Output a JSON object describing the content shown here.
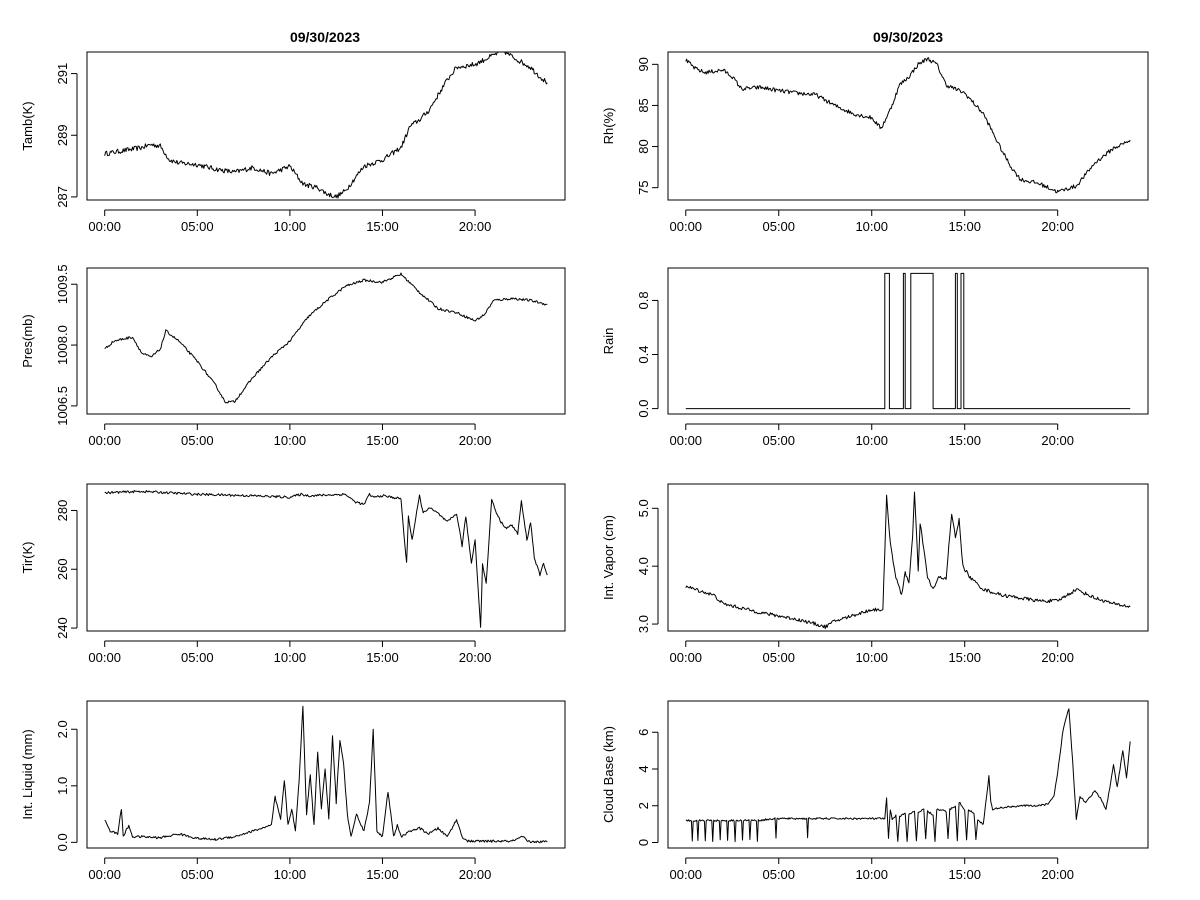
{
  "titles": {
    "left": "09/30/2023",
    "right": "09/30/2023"
  },
  "chart_data": [
    {
      "type": "line",
      "ylabel": "Tamb(K)",
      "xlim": [
        0,
        24
      ],
      "ylim": [
        286.9,
        291.7
      ],
      "xticks": [
        0,
        5,
        10,
        15,
        20
      ],
      "xtick_labels": [
        "00:00",
        "05:00",
        "10:00",
        "15:00",
        "20:00"
      ],
      "yticks": [
        287,
        289,
        291
      ],
      "ytick_labels": [
        "287",
        "289",
        "291"
      ],
      "series": [
        {
          "noise": 0.08,
          "x": [
            0,
            0.5,
            1,
            1.5,
            2,
            2.5,
            3,
            3.5,
            4,
            5,
            6,
            7,
            8,
            9,
            10,
            10.6,
            10.8,
            11.5,
            12,
            12.5,
            13,
            13.5,
            14,
            15,
            16,
            16.5,
            17,
            17.5,
            18,
            18.5,
            19,
            20,
            21,
            21.5,
            22,
            23,
            23.5,
            23.9
          ],
          "y": [
            288.4,
            288.45,
            288.5,
            288.55,
            288.6,
            288.7,
            288.65,
            288.2,
            288.1,
            288.05,
            287.9,
            287.8,
            287.95,
            287.75,
            288.0,
            287.5,
            287.4,
            287.3,
            287.1,
            287.0,
            287.2,
            287.6,
            288.0,
            288.2,
            288.6,
            289.3,
            289.5,
            289.8,
            290.3,
            290.8,
            291.2,
            291.3,
            291.6,
            291.75,
            291.55,
            291.2,
            290.9,
            290.7
          ]
        }
      ]
    },
    {
      "type": "line",
      "ylabel": "Rh(%)",
      "xlim": [
        0,
        24
      ],
      "ylim": [
        73.5,
        91.5
      ],
      "xticks": [
        0,
        5,
        10,
        15,
        20
      ],
      "xtick_labels": [
        "00:00",
        "05:00",
        "10:00",
        "15:00",
        "20:00"
      ],
      "yticks": [
        75,
        80,
        85,
        90
      ],
      "ytick_labels": [
        "75",
        "80",
        "85",
        "90"
      ],
      "series": [
        {
          "noise": 0.25,
          "x": [
            0,
            0.5,
            1,
            2,
            2.5,
            3,
            4,
            5,
            6,
            7,
            8,
            9,
            10,
            10.5,
            11,
            11.5,
            12,
            12.5,
            13,
            13.5,
            14,
            15,
            16,
            17,
            17.5,
            18,
            19,
            20,
            21,
            22,
            23,
            23.5,
            23.9
          ],
          "y": [
            90.5,
            89.5,
            89.0,
            89.3,
            88.5,
            87.0,
            87.2,
            86.8,
            86.5,
            86.3,
            85.0,
            84.0,
            83.5,
            82.2,
            84.5,
            87.5,
            88.5,
            90.0,
            90.7,
            90.0,
            87.5,
            86.5,
            84.0,
            79.5,
            77.5,
            76.0,
            75.5,
            74.5,
            75.2,
            78.0,
            79.8,
            80.3,
            80.8
          ]
        }
      ]
    },
    {
      "type": "line",
      "ylabel": "Pres(mb)",
      "xlim": [
        0,
        24
      ],
      "ylim": [
        1006.3,
        1009.9
      ],
      "xticks": [
        0,
        5,
        10,
        15,
        20
      ],
      "xtick_labels": [
        "00:00",
        "05:00",
        "10:00",
        "15:00",
        "20:00"
      ],
      "yticks": [
        1006.5,
        1008.0,
        1009.5
      ],
      "ytick_labels": [
        "1006.5",
        "1008.0",
        "1009.5"
      ],
      "series": [
        {
          "noise": 0.03,
          "x": [
            0,
            0.5,
            1,
            1.5,
            2,
            2.5,
            3,
            3.3,
            4,
            5,
            6,
            6.5,
            7,
            8,
            9,
            10,
            11,
            12,
            13,
            14,
            15,
            16,
            17,
            18,
            19,
            20,
            20.5,
            21,
            22,
            23,
            23.9
          ],
          "y": [
            1007.9,
            1008.1,
            1008.15,
            1008.2,
            1007.8,
            1007.7,
            1007.9,
            1008.35,
            1008.1,
            1007.6,
            1007.0,
            1006.6,
            1006.6,
            1007.2,
            1007.7,
            1008.1,
            1008.7,
            1009.1,
            1009.45,
            1009.6,
            1009.55,
            1009.75,
            1009.3,
            1008.9,
            1008.8,
            1008.6,
            1008.75,
            1009.1,
            1009.15,
            1009.1,
            1009.0
          ]
        }
      ]
    },
    {
      "type": "line",
      "ylabel": "Rain",
      "xlim": [
        0,
        24
      ],
      "ylim": [
        -0.04,
        1.04
      ],
      "xticks": [
        0,
        5,
        10,
        15,
        20
      ],
      "xtick_labels": [
        "00:00",
        "05:00",
        "10:00",
        "15:00",
        "20:00"
      ],
      "yticks": [
        0,
        0.4,
        0.8
      ],
      "ytick_labels": [
        "0.0",
        "0.4",
        "0.8"
      ],
      "series": [
        {
          "noise": 0,
          "x": [
            0,
            10.7,
            10.7,
            10.95,
            10.95,
            11.7,
            11.7,
            11.8,
            11.8,
            12.1,
            12.1,
            13.3,
            13.3,
            14.5,
            14.5,
            14.6,
            14.6,
            14.8,
            14.8,
            14.95,
            14.95,
            23.9
          ],
          "y": [
            0,
            0,
            1,
            1,
            0,
            0,
            1,
            1,
            0,
            0,
            1,
            1,
            0,
            0,
            1,
            1,
            0,
            0,
            1,
            1,
            0,
            0
          ]
        }
      ]
    },
    {
      "type": "line",
      "ylabel": "Tir(K)",
      "xlim": [
        0,
        24
      ],
      "ylim": [
        239,
        289
      ],
      "xticks": [
        0,
        5,
        10,
        15,
        20
      ],
      "xtick_labels": [
        "00:00",
        "05:00",
        "10:00",
        "15:00",
        "20:00"
      ],
      "yticks": [
        240,
        260,
        280
      ],
      "ytick_labels": [
        "240",
        "260",
        "280"
      ],
      "series": [
        {
          "noise": 0.4,
          "x": [
            0,
            2,
            5,
            8,
            10,
            10.6,
            11,
            13,
            13.5,
            14,
            14.3,
            14.5,
            15,
            16,
            16.1,
            16.3,
            16.4,
            16.6,
            17,
            17.2,
            17.5,
            18,
            18.5,
            19,
            19.3,
            19.5,
            19.8,
            20.0,
            20.2,
            20.3,
            20.4,
            20.6,
            20.9,
            21.1,
            21.4,
            21.7,
            22,
            22.3,
            22.5,
            22.8,
            23,
            23.2,
            23.5,
            23.7,
            23.9
          ],
          "y": [
            286,
            286.5,
            285.5,
            285,
            284.5,
            285.5,
            285,
            285.5,
            283,
            282,
            285.5,
            284.5,
            285,
            284,
            276,
            262,
            278,
            270,
            285,
            279,
            281,
            279,
            276,
            279,
            268,
            278,
            262,
            270,
            250,
            240,
            262,
            255,
            284,
            280,
            276,
            274,
            275,
            272,
            283,
            270,
            276,
            264,
            258,
            262,
            258
          ]
        }
      ]
    },
    {
      "type": "line",
      "ylabel": "Int. Vapor (cm)",
      "xlim": [
        0,
        24
      ],
      "ylim": [
        2.88,
        5.42
      ],
      "xticks": [
        0,
        5,
        10,
        15,
        20
      ],
      "xtick_labels": [
        "00:00",
        "05:00",
        "10:00",
        "15:00",
        "20:00"
      ],
      "yticks": [
        3.0,
        4.0,
        5.0
      ],
      "ytick_labels": [
        "3.0",
        "4.0",
        "5.0"
      ],
      "series": [
        {
          "noise": 0.03,
          "x": [
            0,
            1,
            1.5,
            2,
            4,
            6,
            7,
            7.5,
            8,
            9,
            10,
            10.6,
            10.8,
            11,
            11.3,
            11.6,
            11.8,
            12.0,
            12.2,
            12.3,
            12.5,
            12.6,
            12.8,
            13.0,
            13.3,
            13.6,
            14,
            14.3,
            14.5,
            14.7,
            14.9,
            15.3,
            16,
            17,
            18,
            19,
            20,
            21,
            22,
            23,
            23.9
          ],
          "y": [
            3.65,
            3.55,
            3.5,
            3.35,
            3.2,
            3.08,
            3.0,
            2.95,
            3.05,
            3.15,
            3.25,
            3.25,
            5.2,
            4.4,
            3.8,
            3.5,
            3.9,
            3.7,
            4.5,
            5.3,
            3.9,
            4.75,
            4.3,
            3.8,
            3.6,
            3.8,
            3.8,
            4.9,
            4.5,
            4.8,
            4.0,
            3.8,
            3.6,
            3.5,
            3.45,
            3.4,
            3.4,
            3.6,
            3.45,
            3.35,
            3.3
          ]
        }
      ]
    },
    {
      "type": "line",
      "ylabel": "Int. Liquid (mm)",
      "xlim": [
        0,
        24
      ],
      "ylim": [
        -0.1,
        2.5
      ],
      "xticks": [
        0,
        5,
        10,
        15,
        20
      ],
      "xtick_labels": [
        "00:00",
        "05:00",
        "10:00",
        "15:00",
        "20:00"
      ],
      "yticks": [
        0,
        1,
        2
      ],
      "ytick_labels": [
        "0.0",
        "1.0",
        "2.0"
      ],
      "series": [
        {
          "noise": 0.02,
          "x": [
            0,
            0.3,
            0.7,
            0.9,
            1.0,
            1.3,
            1.5,
            2,
            3,
            4,
            5,
            6,
            6.5,
            7,
            8,
            9,
            9.2,
            9.5,
            9.7,
            9.9,
            10.1,
            10.3,
            10.5,
            10.7,
            10.9,
            11.1,
            11.3,
            11.5,
            11.7,
            11.9,
            12.1,
            12.3,
            12.5,
            12.7,
            12.9,
            13.1,
            13.3,
            13.6,
            14,
            14.3,
            14.5,
            14.7,
            15.0,
            15.3,
            15.6,
            15.8,
            16,
            16.5,
            17,
            17.5,
            18,
            18.5,
            19,
            19.3,
            19.6,
            20,
            21,
            22,
            22.6,
            22.8,
            23,
            23.9
          ],
          "y": [
            0.4,
            0.2,
            0.15,
            0.6,
            0.1,
            0.3,
            0.1,
            0.1,
            0.08,
            0.15,
            0.07,
            0.05,
            0.08,
            0.1,
            0.2,
            0.3,
            0.8,
            0.4,
            1.1,
            0.3,
            0.6,
            0.2,
            1.1,
            2.4,
            0.5,
            1.2,
            0.3,
            1.6,
            0.6,
            1.3,
            0.4,
            1.9,
            0.7,
            1.8,
            1.4,
            0.5,
            0.1,
            0.5,
            0.2,
            0.7,
            2.0,
            0.2,
            0.1,
            0.9,
            0.1,
            0.3,
            0.1,
            0.2,
            0.25,
            0.15,
            0.25,
            0.1,
            0.4,
            0.1,
            0.02,
            0.02,
            0.02,
            0.02,
            0.1,
            0.02,
            0.01,
            0.01
          ]
        }
      ]
    },
    {
      "type": "line",
      "ylabel": "Cloud Base (km)",
      "xlim": [
        0,
        24
      ],
      "ylim": [
        -0.3,
        7.7
      ],
      "xticks": [
        0,
        5,
        10,
        15,
        20
      ],
      "xtick_labels": [
        "00:00",
        "05:00",
        "10:00",
        "15:00",
        "20:00"
      ],
      "yticks": [
        0,
        2,
        4,
        6
      ],
      "ytick_labels": [
        "0",
        "2",
        "4",
        "6"
      ],
      "series": [
        {
          "noise": 0.05,
          "x": [
            0,
            0.3,
            0.35,
            0.4,
            0.6,
            0.65,
            0.7,
            1.0,
            1.05,
            1.1,
            1.4,
            1.45,
            1.5,
            1.8,
            1.85,
            1.9,
            2.2,
            2.25,
            2.3,
            2.6,
            2.65,
            2.7,
            3.0,
            3.05,
            3.1,
            3.4,
            3.45,
            3.5,
            3.8,
            3.85,
            3.9,
            4.8,
            4.85,
            4.9,
            6.5,
            6.55,
            6.6,
            10.7,
            10.8,
            10.9,
            11.0,
            11.1,
            11.3,
            11.4,
            11.5,
            11.8,
            11.9,
            12.0,
            12.3,
            12.4,
            12.5,
            12.8,
            12.9,
            13.0,
            13.3,
            13.4,
            13.5,
            14.0,
            14.1,
            14.2,
            14.5,
            14.6,
            14.7,
            15.0,
            15.1,
            15.2,
            15.5,
            15.6,
            15.7,
            16,
            16.3,
            16.4,
            16.5,
            17,
            18,
            19,
            19.5,
            19.8,
            20.0,
            20.3,
            20.6,
            20.8,
            21.0,
            21.2,
            21.5,
            22,
            22.3,
            22.6,
            23,
            23.2,
            23.5,
            23.7,
            23.9
          ],
          "y": [
            1.2,
            1.2,
            0.1,
            1.2,
            1.2,
            0.1,
            1.2,
            1.2,
            0.1,
            1.2,
            1.2,
            0.1,
            1.2,
            1.2,
            0.1,
            1.2,
            1.2,
            0.1,
            1.2,
            1.2,
            0.1,
            1.2,
            1.2,
            0.1,
            1.2,
            1.2,
            0.2,
            1.2,
            1.2,
            0.1,
            1.2,
            1.3,
            0.2,
            1.3,
            1.3,
            0.3,
            1.3,
            1.3,
            2.4,
            0.2,
            1.8,
            1.2,
            1.5,
            0.1,
            1.4,
            1.6,
            0.1,
            1.5,
            1.7,
            0.1,
            1.6,
            1.8,
            0.2,
            1.7,
            1.5,
            0.1,
            1.8,
            1.7,
            0.2,
            1.8,
            2.0,
            0.1,
            2.2,
            1.8,
            0.1,
            1.8,
            1.6,
            0.2,
            1.2,
            1.0,
            3.6,
            2.2,
            1.8,
            1.9,
            2.0,
            2.0,
            2.1,
            2.5,
            3.8,
            6.2,
            7.3,
            4.5,
            1.3,
            2.5,
            2.2,
            2.8,
            2.4,
            1.8,
            4.2,
            3.0,
            5.0,
            3.5,
            5.5
          ]
        }
      ]
    }
  ]
}
